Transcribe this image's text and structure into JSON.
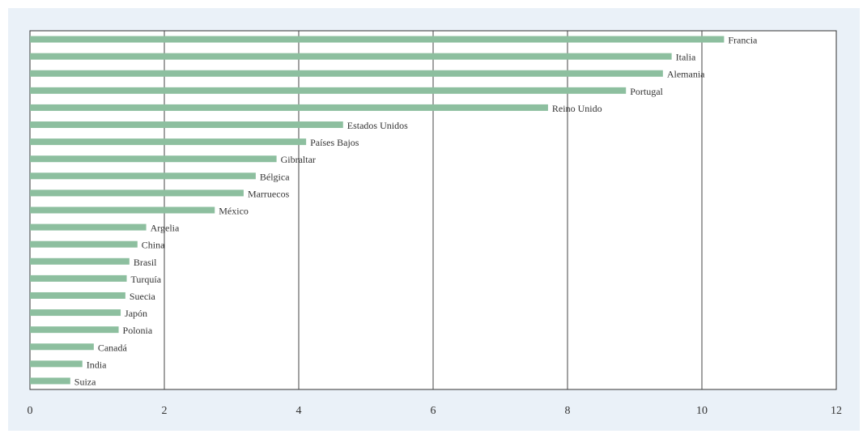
{
  "chart_data": {
    "type": "bar",
    "orientation": "horizontal",
    "title": "",
    "xlabel": "",
    "ylabel": "",
    "xlim": [
      0,
      12
    ],
    "x_ticks": [
      0,
      2,
      4,
      6,
      8,
      10,
      12
    ],
    "grid": "vertical",
    "legend": "none",
    "bar_color": "#8dbf9f",
    "categories": [
      "Francia",
      "Italia",
      "Alemania",
      "Portugal",
      "Reino Unido",
      "Estados Unidos",
      "Países Bajos",
      "Gibraltar",
      "Bélgica",
      "Marruecos",
      "México",
      "Argelia",
      "China",
      "Brasil",
      "Turquía",
      "Suecia",
      "Japón",
      "Polonia",
      "Canadá",
      "India",
      "Suiza"
    ],
    "values": [
      10.33,
      9.55,
      9.42,
      8.87,
      7.71,
      4.66,
      4.11,
      3.67,
      3.36,
      3.18,
      2.75,
      1.73,
      1.6,
      1.48,
      1.44,
      1.42,
      1.35,
      1.32,
      0.95,
      0.78,
      0.6
    ]
  }
}
